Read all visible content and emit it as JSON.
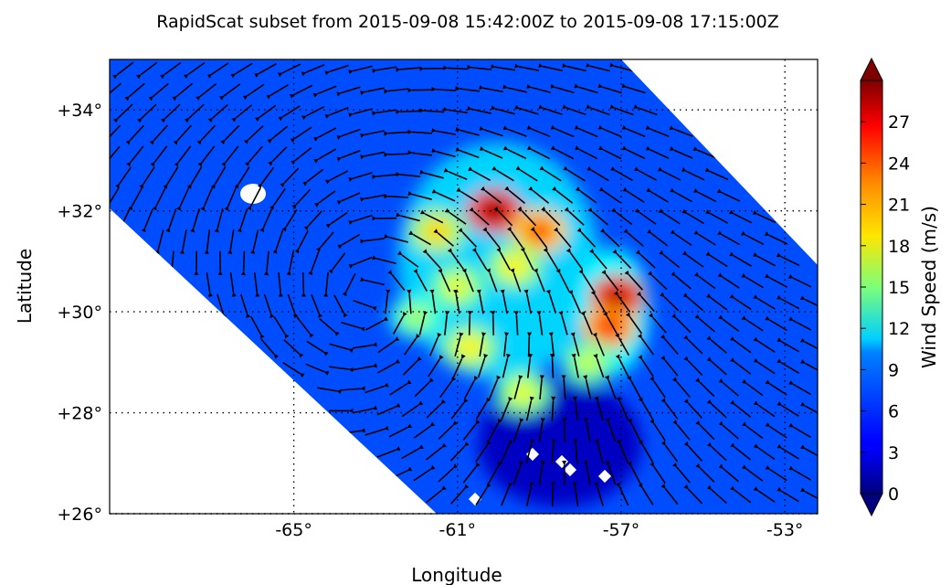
{
  "chart_data": {
    "type": "heatmap",
    "title": "RapidScat subset from 2015-09-08 15:42:00Z to 2015-09-08 17:15:00Z",
    "xlabel": "Longitude",
    "ylabel": "Latitude",
    "xlim": [
      -69.5,
      -52.2
    ],
    "ylim": [
      26,
      35
    ],
    "x_ticks": [
      {
        "value": -65,
        "label": "-65°"
      },
      {
        "value": -61,
        "label": "-61°"
      },
      {
        "value": -57,
        "label": "-57°"
      },
      {
        "value": -53,
        "label": "-53°"
      }
    ],
    "y_ticks": [
      {
        "value": 26,
        "label": "+26°"
      },
      {
        "value": 28,
        "label": "+28°"
      },
      {
        "value": 30,
        "label": "+30°"
      },
      {
        "value": 32,
        "label": "+32°"
      },
      {
        "value": 34,
        "label": "+34°"
      }
    ],
    "grid": true,
    "colorbar": {
      "label": "Wind Speed (m/s)",
      "min": 0,
      "max": 30,
      "ticks": [
        0,
        3,
        6,
        9,
        12,
        15,
        18,
        21,
        24,
        27
      ],
      "colormap": "jet"
    },
    "storm_center": {
      "lon": -63.2,
      "lat": 30.3
    },
    "wind_maxima": [
      {
        "lon": -60.1,
        "lat": 32.0,
        "speed": 29
      },
      {
        "lon": -59.0,
        "lat": 31.6,
        "speed": 24
      },
      {
        "lon": -57.1,
        "lat": 30.3,
        "speed": 28
      },
      {
        "lon": -57.3,
        "lat": 29.7,
        "speed": 25
      },
      {
        "lon": -61.5,
        "lat": 31.6,
        "speed": 20
      },
      {
        "lon": -61.0,
        "lat": 30.5,
        "speed": 18
      },
      {
        "lon": -59.6,
        "lat": 30.9,
        "speed": 19
      },
      {
        "lon": -60.7,
        "lat": 29.3,
        "speed": 19
      },
      {
        "lon": -59.4,
        "lat": 28.4,
        "speed": 18
      },
      {
        "lon": -62.0,
        "lat": 29.9,
        "speed": 16
      },
      {
        "lon": -57.8,
        "lat": 29.0,
        "speed": 17
      }
    ],
    "background_speed": 6,
    "calm_zone": {
      "lon": -59.0,
      "lat": 27.3,
      "speed": 2
    }
  }
}
